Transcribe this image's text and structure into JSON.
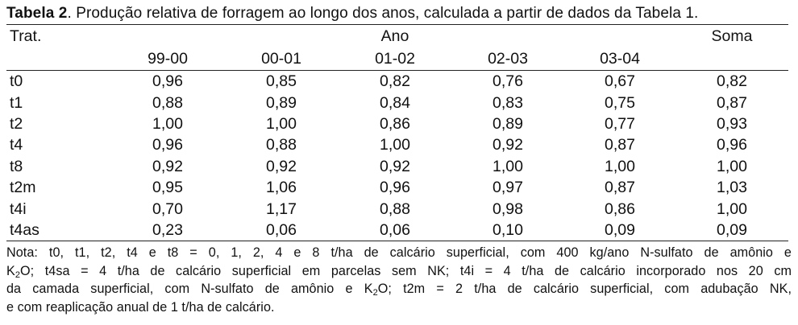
{
  "caption": {
    "label": "Tabela 2",
    "text": ". Produção relativa de forragem ao longo dos anos, calculada a partir de dados da Tabela 1."
  },
  "table": {
    "header": {
      "trat": "Trat.",
      "ano": "Ano",
      "soma": "Soma",
      "years": [
        "99-00",
        "00-01",
        "01-02",
        "02-03",
        "03-04"
      ]
    },
    "rows": [
      {
        "trat": "t0",
        "values": [
          "0,96",
          "0,85",
          "0,82",
          "0,76",
          "0,67"
        ],
        "soma": "0,82"
      },
      {
        "trat": "t1",
        "values": [
          "0,88",
          "0,89",
          "0,84",
          "0,83",
          "0,75"
        ],
        "soma": "0,87"
      },
      {
        "trat": "t2",
        "values": [
          "1,00",
          "1,00",
          "0,86",
          "0,89",
          "0,77"
        ],
        "soma": "0,93"
      },
      {
        "trat": "t4",
        "values": [
          "0,96",
          "0,88",
          "1,00",
          "0,92",
          "0,87"
        ],
        "soma": "0,96"
      },
      {
        "trat": "t8",
        "values": [
          "0,92",
          "0,92",
          "0,92",
          "1,00",
          "1,00"
        ],
        "soma": "1,00"
      },
      {
        "trat": "t2m",
        "values": [
          "0,95",
          "1,06",
          "0,96",
          "0,97",
          "0,87"
        ],
        "soma": "1,03"
      },
      {
        "trat": "t4i",
        "values": [
          "0,70",
          "1,17",
          "0,88",
          "0,98",
          "0,86"
        ],
        "soma": "1,00"
      },
      {
        "trat": "t4as",
        "values": [
          "0,23",
          "0,06",
          "0,06",
          "0,10",
          "0,09"
        ],
        "soma": "0,09"
      }
    ]
  },
  "note": {
    "line1": "Nota: t0, t1, t2, t4 e t8 = 0, 1, 2, 4 e 8 t/ha de calcário superficial, com 400 kg/ano N-sulfato de amônio e",
    "line2a": "K",
    "line2sub": "2",
    "line2b": "O; t4sa = 4 t/ha de calcário superficial em parcelas sem NK; t4i = 4 t/ha de calcário incorporado nos 20 cm",
    "line3a": "da camada superficial, com N-sulfato de amônio e K",
    "line3sub": "2",
    "line3b": "O; t2m = 2 t/ha de calcário superficial, com adubação NK,",
    "line4": "e com reaplicação anual de 1 t/ha de calcário."
  }
}
